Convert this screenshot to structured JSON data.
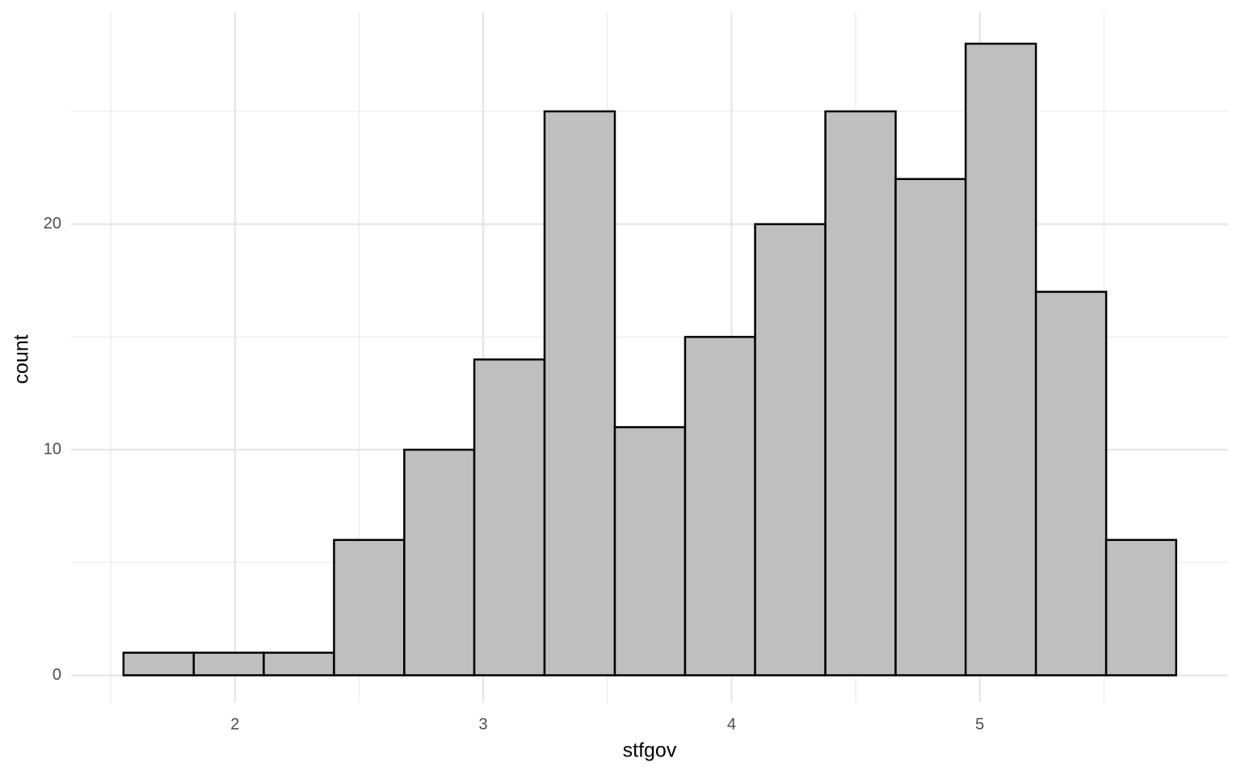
{
  "chart_data": {
    "type": "histogram",
    "x_label": "stfgov",
    "y_label": "count",
    "bins": [
      1.551,
      1.834,
      2.116,
      2.399,
      2.682,
      2.964,
      3.247,
      3.53,
      3.813,
      4.095,
      4.378,
      4.661,
      4.943,
      5.226,
      5.509,
      5.791
    ],
    "counts": [
      1,
      1,
      1,
      6,
      10,
      14,
      25,
      11,
      15,
      20,
      25,
      22,
      28,
      17,
      6
    ],
    "color": "#bfbfbf",
    "edge_color": "#000000",
    "xlim": [
      1.34,
      6.0
    ],
    "xticks": [
      2,
      3,
      4,
      5
    ],
    "xminor": [
      1.5,
      2.5,
      3.5,
      4.5,
      5.5
    ],
    "ylim": [
      -1.2,
      29.4
    ],
    "yticks": [
      0,
      10,
      20
    ],
    "yminor": [
      5,
      15,
      25
    ],
    "grid": true
  }
}
